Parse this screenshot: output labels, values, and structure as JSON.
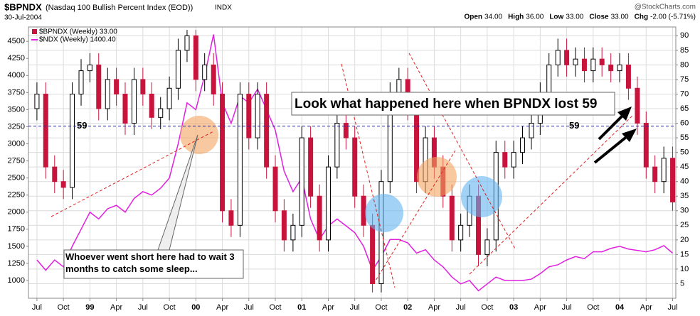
{
  "chart_data": {
    "type": "candlestick",
    "title": "$BPNDX",
    "subtitle": "(Nasdaq 100 Bullish Percent Index (EOD))",
    "exchange": "INDX",
    "date": "30-Jul-2004",
    "source": "@StockCharts.com",
    "quote": [
      {
        "label": "Open",
        "value": "34.00"
      },
      {
        "label": "High",
        "value": "36.00"
      },
      {
        "label": "Low",
        "value": "33.00"
      },
      {
        "label": "Close",
        "value": "33.00"
      },
      {
        "label": "Chg",
        "value": "-2.00 (-5.71%)"
      }
    ],
    "x": [
      1998.5,
      1998.583,
      1998.667,
      1998.75,
      1998.833,
      1998.917,
      1999.0,
      1999.083,
      1999.167,
      1999.25,
      1999.333,
      1999.417,
      1999.5,
      1999.583,
      1999.667,
      1999.75,
      1999.833,
      1999.917,
      2000.0,
      2000.083,
      2000.167,
      2000.25,
      2000.333,
      2000.417,
      2000.5,
      2000.583,
      2000.667,
      2000.75,
      2000.833,
      2000.917,
      2001.0,
      2001.083,
      2001.167,
      2001.25,
      2001.333,
      2001.417,
      2001.5,
      2001.583,
      2001.667,
      2001.75,
      2001.833,
      2001.917,
      2002.0,
      2002.083,
      2002.167,
      2002.25,
      2002.333,
      2002.417,
      2002.5,
      2002.583,
      2002.667,
      2002.75,
      2002.833,
      2002.917,
      2003.0,
      2003.083,
      2003.167,
      2003.25,
      2003.333,
      2003.417,
      2003.5,
      2003.583,
      2003.667,
      2003.75,
      2003.833,
      2003.917,
      2004.0,
      2004.083,
      2004.167,
      2004.25,
      2004.333,
      2004.417,
      2004.5
    ],
    "candles": {
      "name": "$BPNDX (Weekly) 33.00",
      "axis": "y2",
      "up_color": "#000000",
      "down_color": "#c8143c",
      "open": [
        65,
        70,
        45,
        40,
        38,
        70,
        78,
        80,
        65,
        75,
        70,
        60,
        75,
        70,
        62,
        65,
        72,
        85,
        90,
        75,
        80,
        70,
        30,
        25,
        70,
        55,
        70,
        45,
        30,
        20,
        25,
        55,
        35,
        20,
        45,
        60,
        55,
        35,
        25,
        5,
        40,
        70,
        75,
        65,
        40,
        55,
        45,
        35,
        20,
        25,
        35,
        15,
        20,
        50,
        45,
        50,
        55,
        60,
        70,
        80,
        85,
        80,
        82,
        78,
        82,
        80,
        78,
        80,
        72,
        60,
        45,
        40,
        48
      ],
      "high": [
        74,
        74,
        49,
        44,
        74,
        82,
        84,
        84,
        79,
        79,
        74,
        79,
        79,
        74,
        69,
        76,
        89,
        92,
        92,
        84,
        84,
        74,
        34,
        74,
        74,
        74,
        74,
        49,
        34,
        29,
        59,
        59,
        39,
        49,
        64,
        64,
        59,
        39,
        29,
        44,
        74,
        79,
        79,
        69,
        59,
        59,
        49,
        39,
        29,
        39,
        39,
        24,
        54,
        54,
        54,
        59,
        64,
        74,
        84,
        89,
        89,
        86,
        86,
        86,
        86,
        84,
        84,
        84,
        76,
        64,
        49,
        52,
        52
      ],
      "low": [
        61,
        41,
        36,
        34,
        34,
        66,
        74,
        61,
        61,
        66,
        56,
        56,
        66,
        58,
        58,
        61,
        68,
        81,
        71,
        71,
        66,
        26,
        21,
        21,
        51,
        51,
        41,
        26,
        16,
        16,
        21,
        31,
        16,
        16,
        41,
        51,
        31,
        21,
        2,
        2,
        36,
        66,
        61,
        36,
        36,
        41,
        31,
        16,
        16,
        21,
        11,
        11,
        16,
        41,
        41,
        46,
        51,
        56,
        66,
        76,
        76,
        76,
        74,
        74,
        76,
        74,
        74,
        68,
        56,
        41,
        36,
        36,
        30
      ],
      "close": [
        70,
        45,
        40,
        38,
        70,
        78,
        80,
        65,
        75,
        70,
        60,
        75,
        70,
        62,
        65,
        72,
        85,
        90,
        75,
        80,
        70,
        30,
        25,
        70,
        55,
        70,
        45,
        30,
        20,
        25,
        55,
        35,
        20,
        45,
        60,
        55,
        35,
        25,
        5,
        40,
        70,
        75,
        65,
        40,
        55,
        45,
        35,
        20,
        25,
        35,
        15,
        20,
        50,
        45,
        50,
        55,
        60,
        70,
        80,
        85,
        80,
        82,
        78,
        82,
        80,
        78,
        80,
        72,
        60,
        45,
        40,
        48,
        33
      ]
    },
    "series": [
      {
        "name": "$NDX (Weekly) 1400.40",
        "color": "#e020e0",
        "values": [
          1300,
          1150,
          1300,
          1200,
          1500,
          1750,
          2000,
          1900,
          2050,
          2100,
          2000,
          2200,
          2300,
          2250,
          2350,
          2500,
          3000,
          3600,
          3500,
          4000,
          4600,
          3600,
          3300,
          3700,
          3600,
          3800,
          3500,
          3200,
          2600,
          2300,
          2500,
          1900,
          1600,
          1800,
          1900,
          1800,
          1700,
          1500,
          1150,
          1350,
          1600,
          1600,
          1550,
          1400,
          1450,
          1300,
          1200,
          1050,
          950,
          1000,
          850,
          950,
          1050,
          1000,
          1000,
          1000,
          1020,
          1100,
          1200,
          1230,
          1300,
          1350,
          1320,
          1420,
          1420,
          1470,
          1500,
          1460,
          1440,
          1420,
          1450,
          1510,
          1400
        ]
      }
    ],
    "reference_line": 59,
    "xlim": [
      1998.42,
      2004.53
    ],
    "xticks": [
      {
        "value": 1998.5,
        "label": "Jul"
      },
      {
        "value": 1998.75,
        "label": "Oct"
      },
      {
        "value": 1999,
        "label": "99"
      },
      {
        "value": 1999.25,
        "label": "Apr"
      },
      {
        "value": 1999.5,
        "label": "Jul"
      },
      {
        "value": 1999.75,
        "label": "Oct"
      },
      {
        "value": 2000,
        "label": "00"
      },
      {
        "value": 2000.25,
        "label": "Apr"
      },
      {
        "value": 2000.5,
        "label": "Jul"
      },
      {
        "value": 2000.75,
        "label": "Oct"
      },
      {
        "value": 2001,
        "label": "01"
      },
      {
        "value": 2001.25,
        "label": "Apr"
      },
      {
        "value": 2001.5,
        "label": "Jul"
      },
      {
        "value": 2001.75,
        "label": "Oct"
      },
      {
        "value": 2002,
        "label": "02"
      },
      {
        "value": 2002.25,
        "label": "Apr"
      },
      {
        "value": 2002.5,
        "label": "Jul"
      },
      {
        "value": 2002.75,
        "label": "Oct"
      },
      {
        "value": 2003,
        "label": "03"
      },
      {
        "value": 2003.25,
        "label": "Apr"
      },
      {
        "value": 2003.5,
        "label": "Jul"
      },
      {
        "value": 2003.75,
        "label": "Oct"
      },
      {
        "value": 2004,
        "label": "04"
      },
      {
        "value": 2004.25,
        "label": "Apr"
      },
      {
        "value": 2004.5,
        "label": "Jul"
      }
    ],
    "ylim": [
      740,
      4710
    ],
    "yticks": [
      1000,
      1250,
      1500,
      1750,
      2000,
      2250,
      2500,
      2750,
      3000,
      3250,
      3500,
      3750,
      4000,
      4250,
      4500
    ],
    "y2lim": [
      0,
      93
    ],
    "y2ticks": [
      5,
      10,
      15,
      20,
      25,
      30,
      35,
      40,
      45,
      50,
      55,
      60,
      65,
      70,
      75,
      80,
      85,
      90
    ],
    "grid": true,
    "annotations": [
      "Look what happened here when BPNDX lost 59",
      "Whoever went short here had to wait 3 months to catch some sleep..."
    ]
  }
}
